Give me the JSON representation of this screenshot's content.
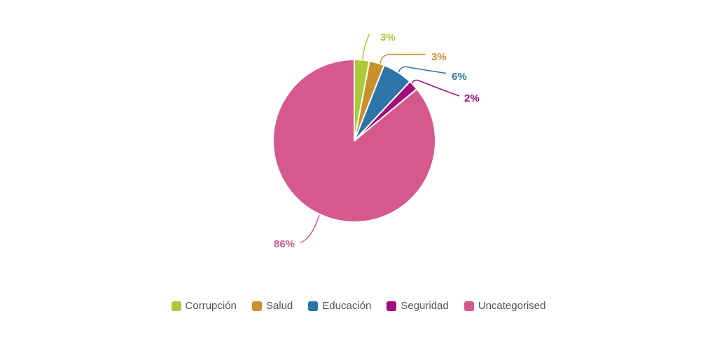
{
  "chart_data": {
    "type": "pie",
    "title": "",
    "legend_position": "bottom",
    "start_angle_deg": 0,
    "direction": "clockwise",
    "background_color": "#ffffff",
    "legend_text_color": "#555555",
    "series": [
      {
        "name": "Corrupción",
        "value": 3,
        "label": "3%",
        "color": "#abc938"
      },
      {
        "name": "Salud",
        "value": 3,
        "label": "3%",
        "color": "#c7922b"
      },
      {
        "name": "Educación",
        "value": 6,
        "label": "6%",
        "color": "#2b75a9"
      },
      {
        "name": "Seguridad",
        "value": 2,
        "label": "2%",
        "color": "#a10d7a"
      },
      {
        "name": "Uncategorised",
        "value": 86,
        "label": "86%",
        "color": "#d5598f"
      }
    ]
  }
}
